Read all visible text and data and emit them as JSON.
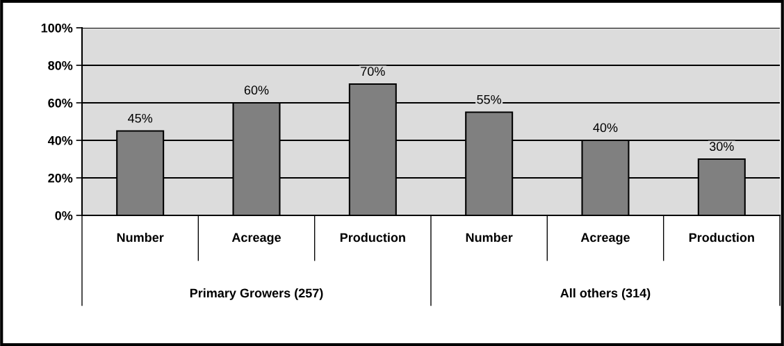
{
  "chart_data": {
    "type": "bar",
    "categories": [
      "Number",
      "Acreage",
      "Production",
      "Number",
      "Acreage",
      "Production"
    ],
    "values": [
      45,
      60,
      70,
      55,
      40,
      30
    ],
    "value_labels": [
      "45%",
      "60%",
      "70%",
      "55%",
      "40%",
      "30%"
    ],
    "color": "#808080",
    "ylim": [
      0,
      100
    ],
    "yticks": [
      {
        "value": 0,
        "label": "0%"
      },
      {
        "value": 20,
        "label": "20%"
      },
      {
        "value": 40,
        "label": "40%"
      },
      {
        "value": 60,
        "label": "60%"
      },
      {
        "value": 80,
        "label": "80%"
      },
      {
        "value": 100,
        "label": "100%"
      }
    ],
    "grid": "y",
    "annotations": [
      "Primary Growers (257)",
      "All others (314)"
    ]
  }
}
